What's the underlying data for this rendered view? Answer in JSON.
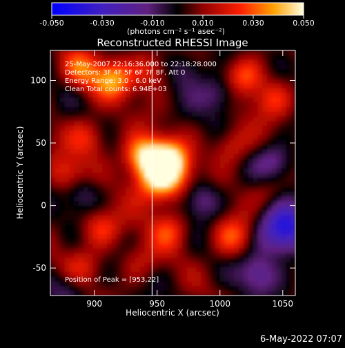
{
  "chart_data": {
    "type": "heatmap",
    "title": "Reconstructed RHESSI Image",
    "xlabel": "Heliocentric X (arcsec)",
    "ylabel": "Heliocentric Y (arcsec)",
    "xlim": [
      865,
      1060
    ],
    "ylim": [
      -72,
      124
    ],
    "xticks": [
      900,
      950,
      1000,
      1050
    ],
    "yticks": [
      -50,
      0,
      50,
      100
    ],
    "colorbar": {
      "range": [
        -0.05,
        0.05
      ],
      "ticks": [
        "-0.050",
        "-0.030",
        "-0.010",
        "0.010",
        "0.030",
        "0.050"
      ],
      "units": "(photons cm⁻² s⁻¹ asec⁻²)"
    },
    "annotations": [
      "25-May-2007 22:16:36.000 to 22:18:28.000",
      "Detectors: 3F 4F 5F 6F 7F 8F, Att 0",
      "Energy Range: 3.0 - 6.0 keV",
      "Clean     Total counts: 6.94E+03"
    ],
    "peak_label": "Position of Peak = [953,22]",
    "peak": [
      953,
      22
    ],
    "limb_line": [
      [
        946,
        124
      ],
      [
        946,
        -72
      ]
    ],
    "grid": false,
    "hotspots": [
      {
        "x": 953,
        "y": 22,
        "value": 0.05
      },
      {
        "x": 938,
        "y": 40,
        "value": 0.035
      },
      {
        "x": 960,
        "y": 38,
        "value": 0.03
      },
      {
        "x": 915,
        "y": 100,
        "value": 0.03
      },
      {
        "x": 890,
        "y": 108,
        "value": 0.025
      },
      {
        "x": 945,
        "y": 108,
        "value": 0.02
      },
      {
        "x": 1020,
        "y": 103,
        "value": 0.025
      },
      {
        "x": 1043,
        "y": 85,
        "value": 0.02
      },
      {
        "x": 1010,
        "y": 48,
        "value": 0.018
      },
      {
        "x": 895,
        "y": 55,
        "value": 0.02
      },
      {
        "x": 878,
        "y": 25,
        "value": 0.02
      },
      {
        "x": 905,
        "y": -18,
        "value": 0.022
      },
      {
        "x": 960,
        "y": -20,
        "value": 0.02
      },
      {
        "x": 1010,
        "y": -25,
        "value": 0.025
      },
      {
        "x": 1040,
        "y": 10,
        "value": 0.012
      },
      {
        "x": 890,
        "y": -50,
        "value": 0.015
      },
      {
        "x": 935,
        "y": -45,
        "value": 0.012
      },
      {
        "x": 985,
        "y": 5,
        "value": -0.02
      },
      {
        "x": 1050,
        "y": -20,
        "value": -0.045
      },
      {
        "x": 1000,
        "y": 90,
        "value": -0.02
      },
      {
        "x": 890,
        "y": 10,
        "value": -0.015
      },
      {
        "x": 1045,
        "y": 35,
        "value": -0.02
      },
      {
        "x": 975,
        "y": 110,
        "value": -0.015
      },
      {
        "x": 1030,
        "y": -55,
        "value": -0.02
      },
      {
        "x": 880,
        "y": -65,
        "value": -0.015
      }
    ]
  },
  "footer": {
    "date": "6-May-2022 07:07"
  }
}
